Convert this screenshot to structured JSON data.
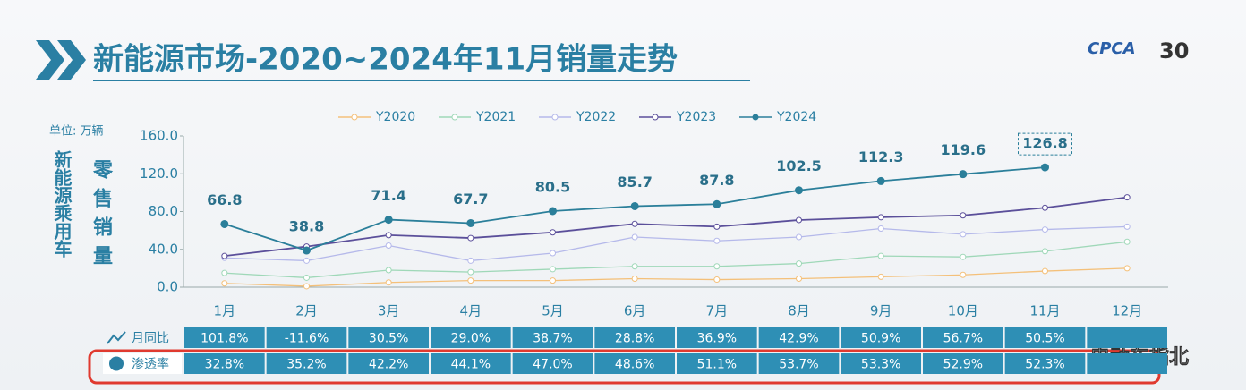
{
  "logo": "CPCA",
  "anniversary": "30",
  "watermark": "电动车指北",
  "chart_data": {
    "type": "line",
    "title": "新能源市场-2020~2024年11月销量走势",
    "unit": "单位: 万辆",
    "ylabel": "新能源乘用车",
    "ylabel2": "零售销量",
    "categories": [
      "1月",
      "2月",
      "3月",
      "4月",
      "5月",
      "6月",
      "7月",
      "8月",
      "9月",
      "10月",
      "11月",
      "12月"
    ],
    "ylim": [
      0,
      160
    ],
    "yticks": [
      {
        "value": 0,
        "label": "0.0"
      },
      {
        "value": 40,
        "label": "40.0"
      },
      {
        "value": 80,
        "label": "80.0"
      },
      {
        "value": 120,
        "label": "120.0"
      },
      {
        "value": 160,
        "label": "160.0"
      }
    ],
    "series": [
      {
        "name": "Y2020",
        "color": "#f4c07a",
        "values": [
          4,
          1,
          5,
          7,
          7,
          9,
          8,
          9,
          11,
          13,
          17,
          20
        ]
      },
      {
        "name": "Y2021",
        "color": "#9fd8b8",
        "values": [
          15,
          10,
          18,
          16,
          19,
          22,
          22,
          25,
          33,
          32,
          38,
          48
        ]
      },
      {
        "name": "Y2022",
        "color": "#b5b9ea",
        "values": [
          31,
          28,
          44,
          28,
          36,
          53,
          49,
          53,
          62,
          56,
          61,
          64
        ]
      },
      {
        "name": "Y2023",
        "color": "#5b4f9a",
        "values": [
          33,
          43,
          55,
          52,
          58,
          67,
          64,
          71,
          74,
          76,
          84,
          95
        ]
      },
      {
        "name": "Y2024",
        "color": "#2b7f9a",
        "values": [
          66.8,
          38.8,
          71.4,
          67.7,
          80.5,
          85.7,
          87.8,
          102.5,
          112.3,
          119.6,
          126.8,
          null
        ]
      }
    ]
  },
  "table": {
    "rows": [
      {
        "label": "月同比",
        "cells": [
          "101.8%",
          "-11.6%",
          "30.5%",
          "29.0%",
          "38.7%",
          "28.8%",
          "36.9%",
          "42.9%",
          "50.9%",
          "56.7%",
          "50.5%",
          null
        ]
      },
      {
        "label": "渗透率",
        "cells": [
          "32.8%",
          "35.2%",
          "42.2%",
          "44.1%",
          "47.0%",
          "48.6%",
          "51.1%",
          "53.7%",
          "53.3%",
          "52.9%",
          "52.3%",
          null
        ]
      }
    ]
  }
}
